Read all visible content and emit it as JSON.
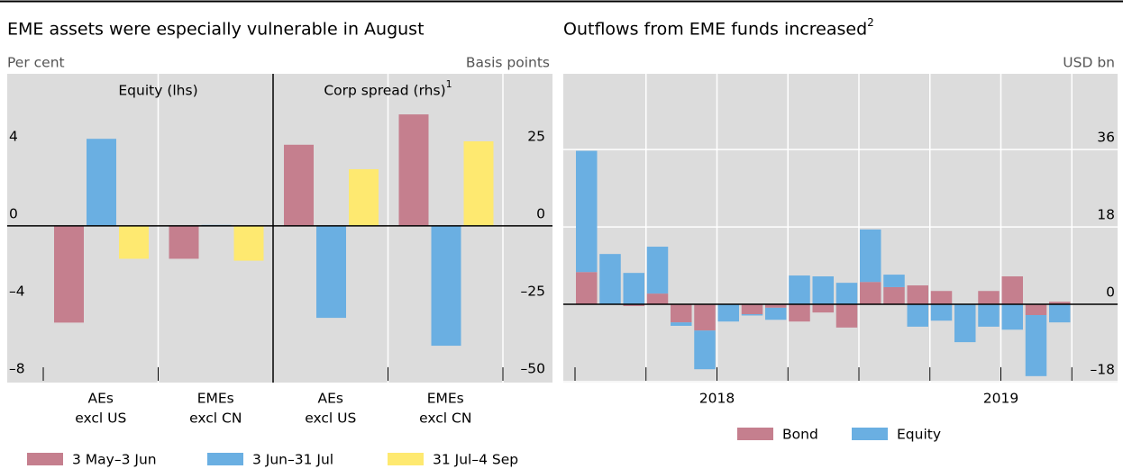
{
  "chart_data": [
    {
      "type": "grouped_bar",
      "title": "EME assets were especially vulnerable in August",
      "y_label": "Per cent",
      "y2_label": "Basis points",
      "panel_labels": [
        "Equity (lhs)",
        "Corp spread (rhs)"
      ],
      "panel_label_notes": [
        null,
        "1"
      ],
      "categories": [
        [
          "AEs",
          "excl US"
        ],
        [
          "EMEs",
          "excl CN"
        ],
        [
          "AEs",
          "excl US"
        ],
        [
          "EMEs",
          "excl CN"
        ]
      ],
      "category_axis": [
        "y",
        "y",
        "y2",
        "y2"
      ],
      "series": [
        {
          "name": "3 May–3 Jun",
          "color": "#c57f8e",
          "values": [
            -5.0,
            -1.7,
            26.2,
            36.0
          ]
        },
        {
          "name": "3 Jun–31 Jul",
          "color": "#6aafe2",
          "values": [
            4.5,
            0.05,
            -29.7,
            -38.7
          ]
        },
        {
          "name": "31 Jul–4 Sep",
          "color": "#fee970",
          "values": [
            -1.7,
            -1.8,
            18.3,
            27.3
          ]
        }
      ],
      "ylim": [
        -8.1,
        7.86
      ],
      "yticks": [
        {
          "value": -8,
          "label": "–8"
        },
        {
          "value": -4,
          "label": "–4"
        },
        0,
        4
      ],
      "y2lim": [
        -50.6,
        49.1
      ],
      "y2ticks": [
        {
          "value": -50,
          "label": "–50"
        },
        {
          "value": -25,
          "label": "–25"
        },
        0,
        25
      ],
      "grid": false
    },
    {
      "type": "stacked_bar",
      "title": "Outflows from EME funds increased",
      "title_note": "2",
      "y_label": "USD bn",
      "categories": [
        null,
        null,
        null,
        null,
        null,
        null,
        "2018",
        null,
        null,
        null,
        null,
        null,
        null,
        null,
        null,
        null,
        null,
        null,
        "2019",
        null,
        null
      ],
      "series": [
        {
          "name": "Bond",
          "color": "#c57f8e",
          "values": [
            7.5,
            0,
            -0.4,
            2.5,
            -4.2,
            -6.1,
            0,
            -2.3,
            -0.8,
            -4.0,
            -1.9,
            -5.4,
            5.2,
            4.0,
            4.4,
            3.1,
            0,
            3.1,
            6.5,
            -2.5,
            0.6
          ]
        },
        {
          "name": "Equity",
          "color": "#6aafe2",
          "values": [
            28.2,
            11.7,
            7.3,
            10.9,
            -0.8,
            -9.0,
            -4.0,
            -0.3,
            -2.8,
            6.7,
            6.5,
            5.0,
            12.2,
            2.9,
            -5.2,
            -3.8,
            -8.8,
            -5.2,
            -5.9,
            -14.2,
            -4.2
          ]
        }
      ],
      "ylim": [
        -18.2,
        53.6
      ],
      "yticks": [
        {
          "value": -18,
          "label": "–18"
        },
        0,
        18,
        36
      ],
      "grid": true
    }
  ]
}
